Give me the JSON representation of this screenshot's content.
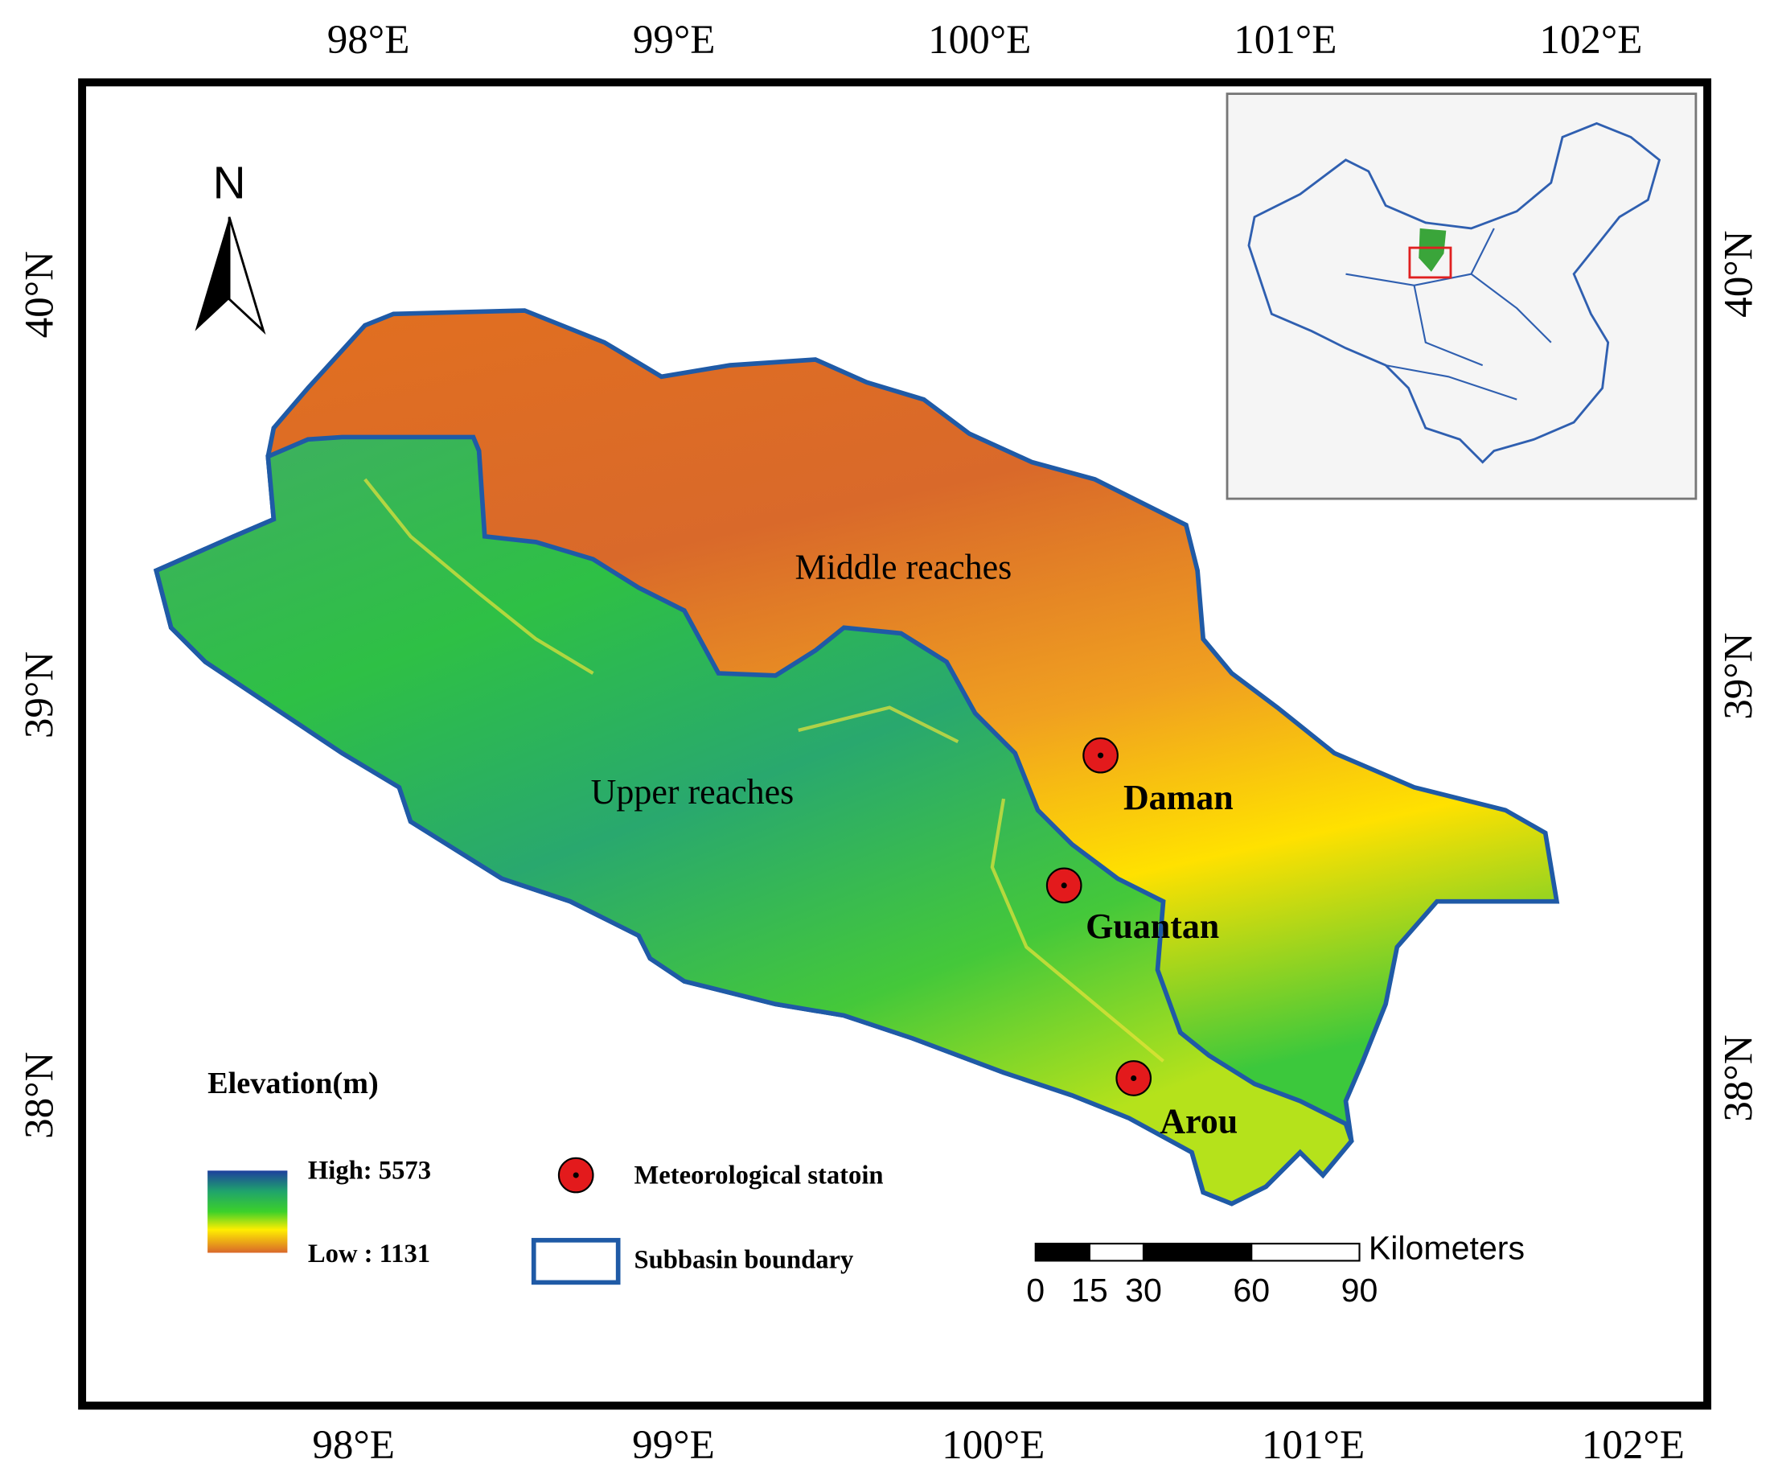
{
  "north_arrow": "N",
  "graticule": {
    "lon": [
      {
        "value": 98,
        "label": "98°E"
      },
      {
        "value": 99,
        "label": "99°E"
      },
      {
        "value": 100,
        "label": "100°E"
      },
      {
        "value": 101,
        "label": "101°E"
      },
      {
        "value": 102,
        "label": "102°E"
      }
    ],
    "lat": [
      {
        "value": 40,
        "label": "40°N"
      },
      {
        "value": 39,
        "label": "39°N"
      },
      {
        "value": 38,
        "label": "38°N"
      }
    ]
  },
  "regions": [
    {
      "label": "Middle reaches"
    },
    {
      "label": "Upper reaches"
    }
  ],
  "stations": [
    {
      "name": "Daman"
    },
    {
      "name": "Guantan"
    },
    {
      "name": "Arou"
    }
  ],
  "legend": {
    "title": "Elevation(m)",
    "high": "High: 5573",
    "low": "Low : 1131",
    "station": "Meteorological statoin",
    "boundary": "Subbasin boundary"
  },
  "scale_bar": {
    "ticks": [
      0,
      15,
      30,
      60,
      90
    ],
    "unit": "Kilometers"
  }
}
